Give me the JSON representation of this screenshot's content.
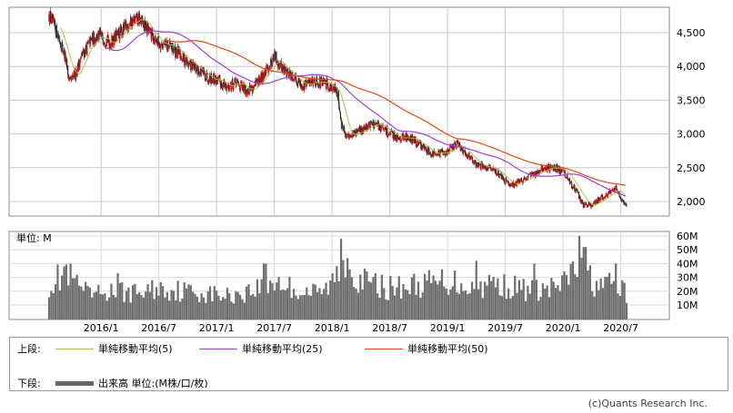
{
  "chart_data": [
    {
      "type": "candlestick",
      "x_ticks": [
        "2016/1",
        "2016/7",
        "2017/1",
        "2017/7",
        "2018/1",
        "2018/7",
        "2019/1",
        "2019/7",
        "2020/1",
        "2020/7"
      ],
      "y_ticks": [
        "4,500",
        "4,000",
        "3,500",
        "3,000",
        "2,500",
        "2,000"
      ],
      "ylim": [
        1850,
        4850
      ],
      "price_path": [
        {
          "t": 2015.55,
          "v": 4750
        },
        {
          "t": 2015.62,
          "v": 4500
        },
        {
          "t": 2015.68,
          "v": 4200
        },
        {
          "t": 2015.73,
          "v": 3750
        },
        {
          "t": 2015.78,
          "v": 3900
        },
        {
          "t": 2015.83,
          "v": 4150
        },
        {
          "t": 2015.92,
          "v": 4400
        },
        {
          "t": 2016.0,
          "v": 4450
        },
        {
          "t": 2016.08,
          "v": 4350
        },
        {
          "t": 2016.17,
          "v": 4500
        },
        {
          "t": 2016.25,
          "v": 4650
        },
        {
          "t": 2016.33,
          "v": 4700
        },
        {
          "t": 2016.42,
          "v": 4500
        },
        {
          "t": 2016.5,
          "v": 4350
        },
        {
          "t": 2016.58,
          "v": 4300
        },
        {
          "t": 2016.67,
          "v": 4200
        },
        {
          "t": 2016.75,
          "v": 4050
        },
        {
          "t": 2016.83,
          "v": 3950
        },
        {
          "t": 2016.92,
          "v": 3850
        },
        {
          "t": 2017.0,
          "v": 3800
        },
        {
          "t": 2017.08,
          "v": 3700
        },
        {
          "t": 2017.17,
          "v": 3750
        },
        {
          "t": 2017.25,
          "v": 3650
        },
        {
          "t": 2017.33,
          "v": 3700
        },
        {
          "t": 2017.42,
          "v": 3900
        },
        {
          "t": 2017.5,
          "v": 4150
        },
        {
          "t": 2017.58,
          "v": 3950
        },
        {
          "t": 2017.67,
          "v": 3850
        },
        {
          "t": 2017.75,
          "v": 3700
        },
        {
          "t": 2017.83,
          "v": 3800
        },
        {
          "t": 2017.92,
          "v": 3750
        },
        {
          "t": 2018.0,
          "v": 3700
        },
        {
          "t": 2018.05,
          "v": 3600
        },
        {
          "t": 2018.08,
          "v": 3150
        },
        {
          "t": 2018.12,
          "v": 2950
        },
        {
          "t": 2018.17,
          "v": 3000
        },
        {
          "t": 2018.25,
          "v": 3050
        },
        {
          "t": 2018.33,
          "v": 3150
        },
        {
          "t": 2018.42,
          "v": 3100
        },
        {
          "t": 2018.5,
          "v": 3000
        },
        {
          "t": 2018.58,
          "v": 2950
        },
        {
          "t": 2018.67,
          "v": 2950
        },
        {
          "t": 2018.75,
          "v": 2850
        },
        {
          "t": 2018.83,
          "v": 2750
        },
        {
          "t": 2018.92,
          "v": 2700
        },
        {
          "t": 2019.0,
          "v": 2750
        },
        {
          "t": 2019.08,
          "v": 2850
        },
        {
          "t": 2019.17,
          "v": 2700
        },
        {
          "t": 2019.25,
          "v": 2550
        },
        {
          "t": 2019.33,
          "v": 2500
        },
        {
          "t": 2019.42,
          "v": 2450
        },
        {
          "t": 2019.5,
          "v": 2300
        },
        {
          "t": 2019.58,
          "v": 2250
        },
        {
          "t": 2019.67,
          "v": 2350
        },
        {
          "t": 2019.75,
          "v": 2400
        },
        {
          "t": 2019.83,
          "v": 2500
        },
        {
          "t": 2019.92,
          "v": 2500
        },
        {
          "t": 2020.0,
          "v": 2450
        },
        {
          "t": 2020.05,
          "v": 2300
        },
        {
          "t": 2020.12,
          "v": 2150
        },
        {
          "t": 2020.17,
          "v": 1950
        },
        {
          "t": 2020.25,
          "v": 1950
        },
        {
          "t": 2020.33,
          "v": 2050
        },
        {
          "t": 2020.42,
          "v": 2150
        },
        {
          "t": 2020.46,
          "v": 2200
        },
        {
          "t": 2020.5,
          "v": 2050
        },
        {
          "t": 2020.55,
          "v": 1950
        }
      ],
      "moving_averages": [
        {
          "name": "単純移動平均(5)",
          "color": "#a8c040"
        },
        {
          "name": "単純移動平均(25)",
          "color": "#a040d8"
        },
        {
          "name": "単純移動平均(50)",
          "color": "#e84810"
        }
      ],
      "up_color": "#e01818",
      "down_color": "#2b2b2b"
    },
    {
      "type": "bar",
      "unit_label": "単位: M",
      "y_ticks": [
        "60M",
        "50M",
        "40M",
        "30M",
        "20M",
        "10M"
      ],
      "ylim": [
        0,
        65
      ],
      "volume_path": [
        {
          "t": 2015.55,
          "v": 28
        },
        {
          "t": 2015.7,
          "v": 34
        },
        {
          "t": 2015.9,
          "v": 18
        },
        {
          "t": 2016.1,
          "v": 22
        },
        {
          "t": 2016.3,
          "v": 20
        },
        {
          "t": 2016.5,
          "v": 24
        },
        {
          "t": 2016.7,
          "v": 22
        },
        {
          "t": 2016.9,
          "v": 20
        },
        {
          "t": 2017.1,
          "v": 18
        },
        {
          "t": 2017.3,
          "v": 22
        },
        {
          "t": 2017.5,
          "v": 30
        },
        {
          "t": 2017.7,
          "v": 22
        },
        {
          "t": 2017.9,
          "v": 20
        },
        {
          "t": 2018.0,
          "v": 28
        },
        {
          "t": 2018.1,
          "v": 42
        },
        {
          "t": 2018.3,
          "v": 28
        },
        {
          "t": 2018.5,
          "v": 24
        },
        {
          "t": 2018.7,
          "v": 26
        },
        {
          "t": 2018.9,
          "v": 28
        },
        {
          "t": 2019.0,
          "v": 30
        },
        {
          "t": 2019.2,
          "v": 26
        },
        {
          "t": 2019.4,
          "v": 28
        },
        {
          "t": 2019.6,
          "v": 24
        },
        {
          "t": 2019.8,
          "v": 22
        },
        {
          "t": 2020.0,
          "v": 26
        },
        {
          "t": 2020.1,
          "v": 40
        },
        {
          "t": 2020.2,
          "v": 34
        },
        {
          "t": 2020.35,
          "v": 24
        },
        {
          "t": 2020.45,
          "v": 30
        },
        {
          "t": 2020.55,
          "v": 18
        }
      ],
      "peaks": [
        {
          "t": 2015.68,
          "v": 38
        },
        {
          "t": 2016.15,
          "v": 33
        },
        {
          "t": 2017.42,
          "v": 40
        },
        {
          "t": 2018.08,
          "v": 58
        },
        {
          "t": 2018.14,
          "v": 44
        },
        {
          "t": 2019.25,
          "v": 42
        },
        {
          "t": 2019.75,
          "v": 40
        },
        {
          "t": 2020.14,
          "v": 60
        },
        {
          "t": 2020.19,
          "v": 52
        },
        {
          "t": 2020.46,
          "v": 40
        }
      ],
      "color": "#6e6e6e"
    }
  ],
  "legend": {
    "upper_label": "上段:",
    "lower_label": "下段:",
    "ma_items": [
      {
        "label": "単純移動平均(5)",
        "color": "#a8c040"
      },
      {
        "label": "単純移動平均(25)",
        "color": "#a040d8"
      },
      {
        "label": "単純移動平均(50)",
        "color": "#e84810"
      }
    ],
    "volume_label": "出来高 単位:(M株/口/枚)"
  },
  "credit": "(c)Quants Research Inc."
}
